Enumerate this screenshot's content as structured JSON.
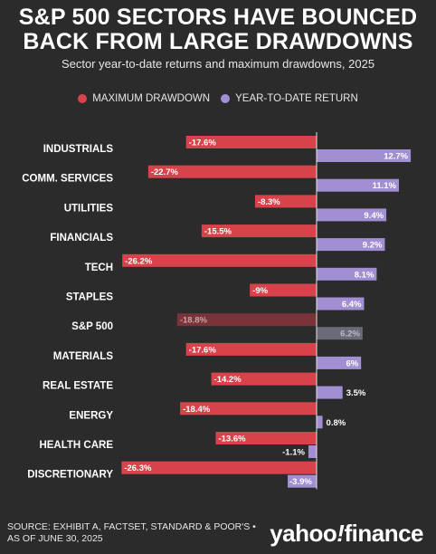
{
  "title_line1": "S&P 500 SECTORS HAVE BOUNCED",
  "title_line2": "BACK FROM LARGE DRAWDOWNS",
  "subtitle": "Sector year-to-date returns and maximum drawdowns, 2025",
  "source_line1": "SOURCE: EXHIBIT A, FACTSET, STANDARD & POOR'S •",
  "source_line2": "AS OF JUNE 30, 2025",
  "logo_main": "yahoo",
  "logo_bang": "!",
  "logo_rest": "finance",
  "colors": {
    "background": "#2b2b2b",
    "drawdown": "#d8434b",
    "ytd": "#a28ed3",
    "drawdown_dim": "#7a3338",
    "ytd_dim": "#6a6a78"
  },
  "chart_data": {
    "type": "bar",
    "orientation": "horizontal",
    "categories": [
      "INDUSTRIALS",
      "COMM. SERVICES",
      "UTILITIES",
      "FINANCIALS",
      "TECH",
      "STAPLES",
      "S&P 500",
      "MATERIALS",
      "REAL ESTATE",
      "ENERGY",
      "HEALTH CARE",
      "DISCRETIONARY"
    ],
    "highlighted_category": "S&P 500",
    "series": [
      {
        "name": "MAXIMUM DRAWDOWN",
        "values": [
          -17.6,
          -22.7,
          -8.3,
          -15.5,
          -26.2,
          -9,
          -18.8,
          -17.6,
          -14.2,
          -18.4,
          -13.6,
          -26.3
        ],
        "labels": [
          "-17.6%",
          "-22.7%",
          "-8.3%",
          "-15.5%",
          "-26.2%",
          "-9%",
          "-18.8%",
          "-17.6%",
          "-14.2%",
          "-18.4%",
          "-13.6%",
          "-26.3%"
        ]
      },
      {
        "name": "YEAR-TO-DATE RETURN",
        "values": [
          12.7,
          11.1,
          9.4,
          9.2,
          8.1,
          6.4,
          6.2,
          6,
          3.5,
          0.8,
          -1.1,
          -3.9
        ],
        "labels": [
          "12.7%",
          "11.1%",
          "9.4%",
          "9.2%",
          "8.1%",
          "6.4%",
          "6.2%",
          "6%",
          "3.5%",
          "0.8%",
          "-1.1%",
          "-3.9%"
        ]
      }
    ],
    "xlim": [
      -26.3,
      12.7
    ],
    "legend_placement": "top-center",
    "grid": false
  }
}
